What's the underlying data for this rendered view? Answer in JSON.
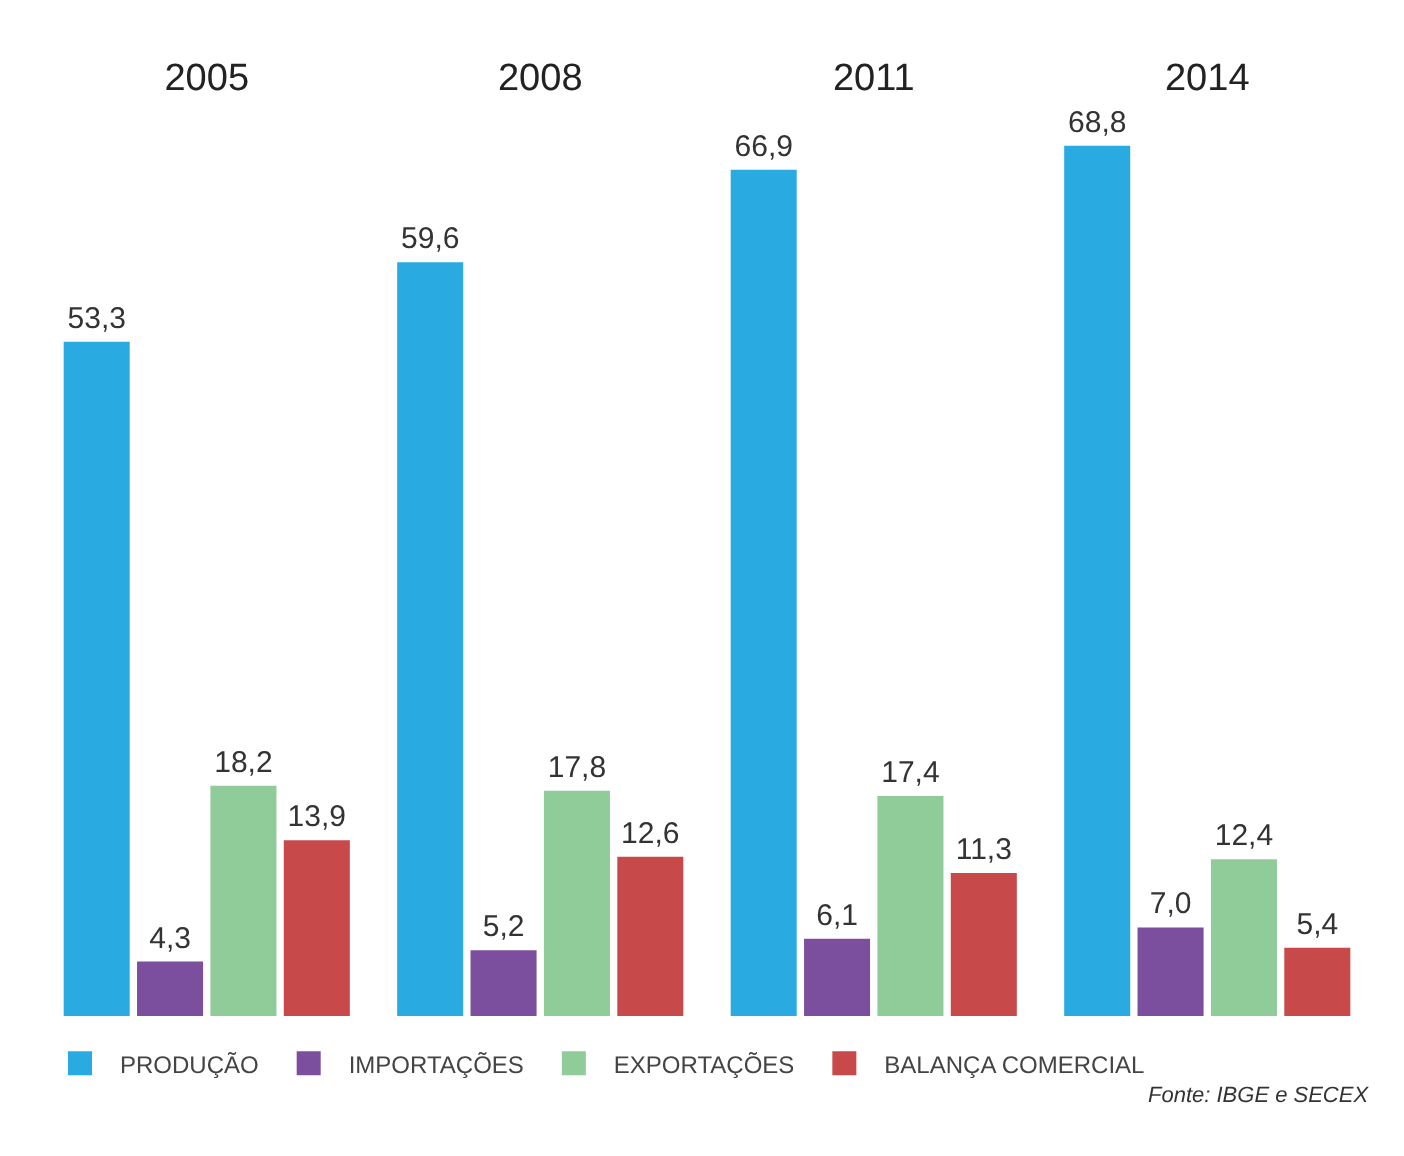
{
  "chart_data": {
    "type": "bar",
    "categories": [
      "2005",
      "2008",
      "2011",
      "2014"
    ],
    "series": [
      {
        "name": "PRODUÇÃO",
        "color": "#29abe2",
        "values": [
          53.3,
          59.6,
          66.9,
          68.8
        ],
        "value_labels": [
          "53,3",
          "59,6",
          "66,9",
          "68,8"
        ]
      },
      {
        "name": "IMPORTAÇÕES",
        "color": "#7b4f9e",
        "values": [
          4.3,
          5.2,
          6.1,
          7.0
        ],
        "value_labels": [
          "4,3",
          "5,2",
          "6,1",
          "7,0"
        ]
      },
      {
        "name": "EXPORTAÇÕES",
        "color": "#8fcc9a",
        "values": [
          18.2,
          17.8,
          17.4,
          12.4
        ],
        "value_labels": [
          "18,2",
          "17,8",
          "17,4",
          "12,4"
        ]
      },
      {
        "name": "BALANÇA COMERCIAL",
        "color": "#c8494a",
        "values": [
          13.9,
          12.6,
          11.3,
          5.4
        ],
        "value_labels": [
          "13,9",
          "12,6",
          "11,3",
          "5,4"
        ]
      }
    ],
    "legend": "bottom",
    "annotations": [
      "Fonte: IBGE e SECEX"
    ]
  }
}
